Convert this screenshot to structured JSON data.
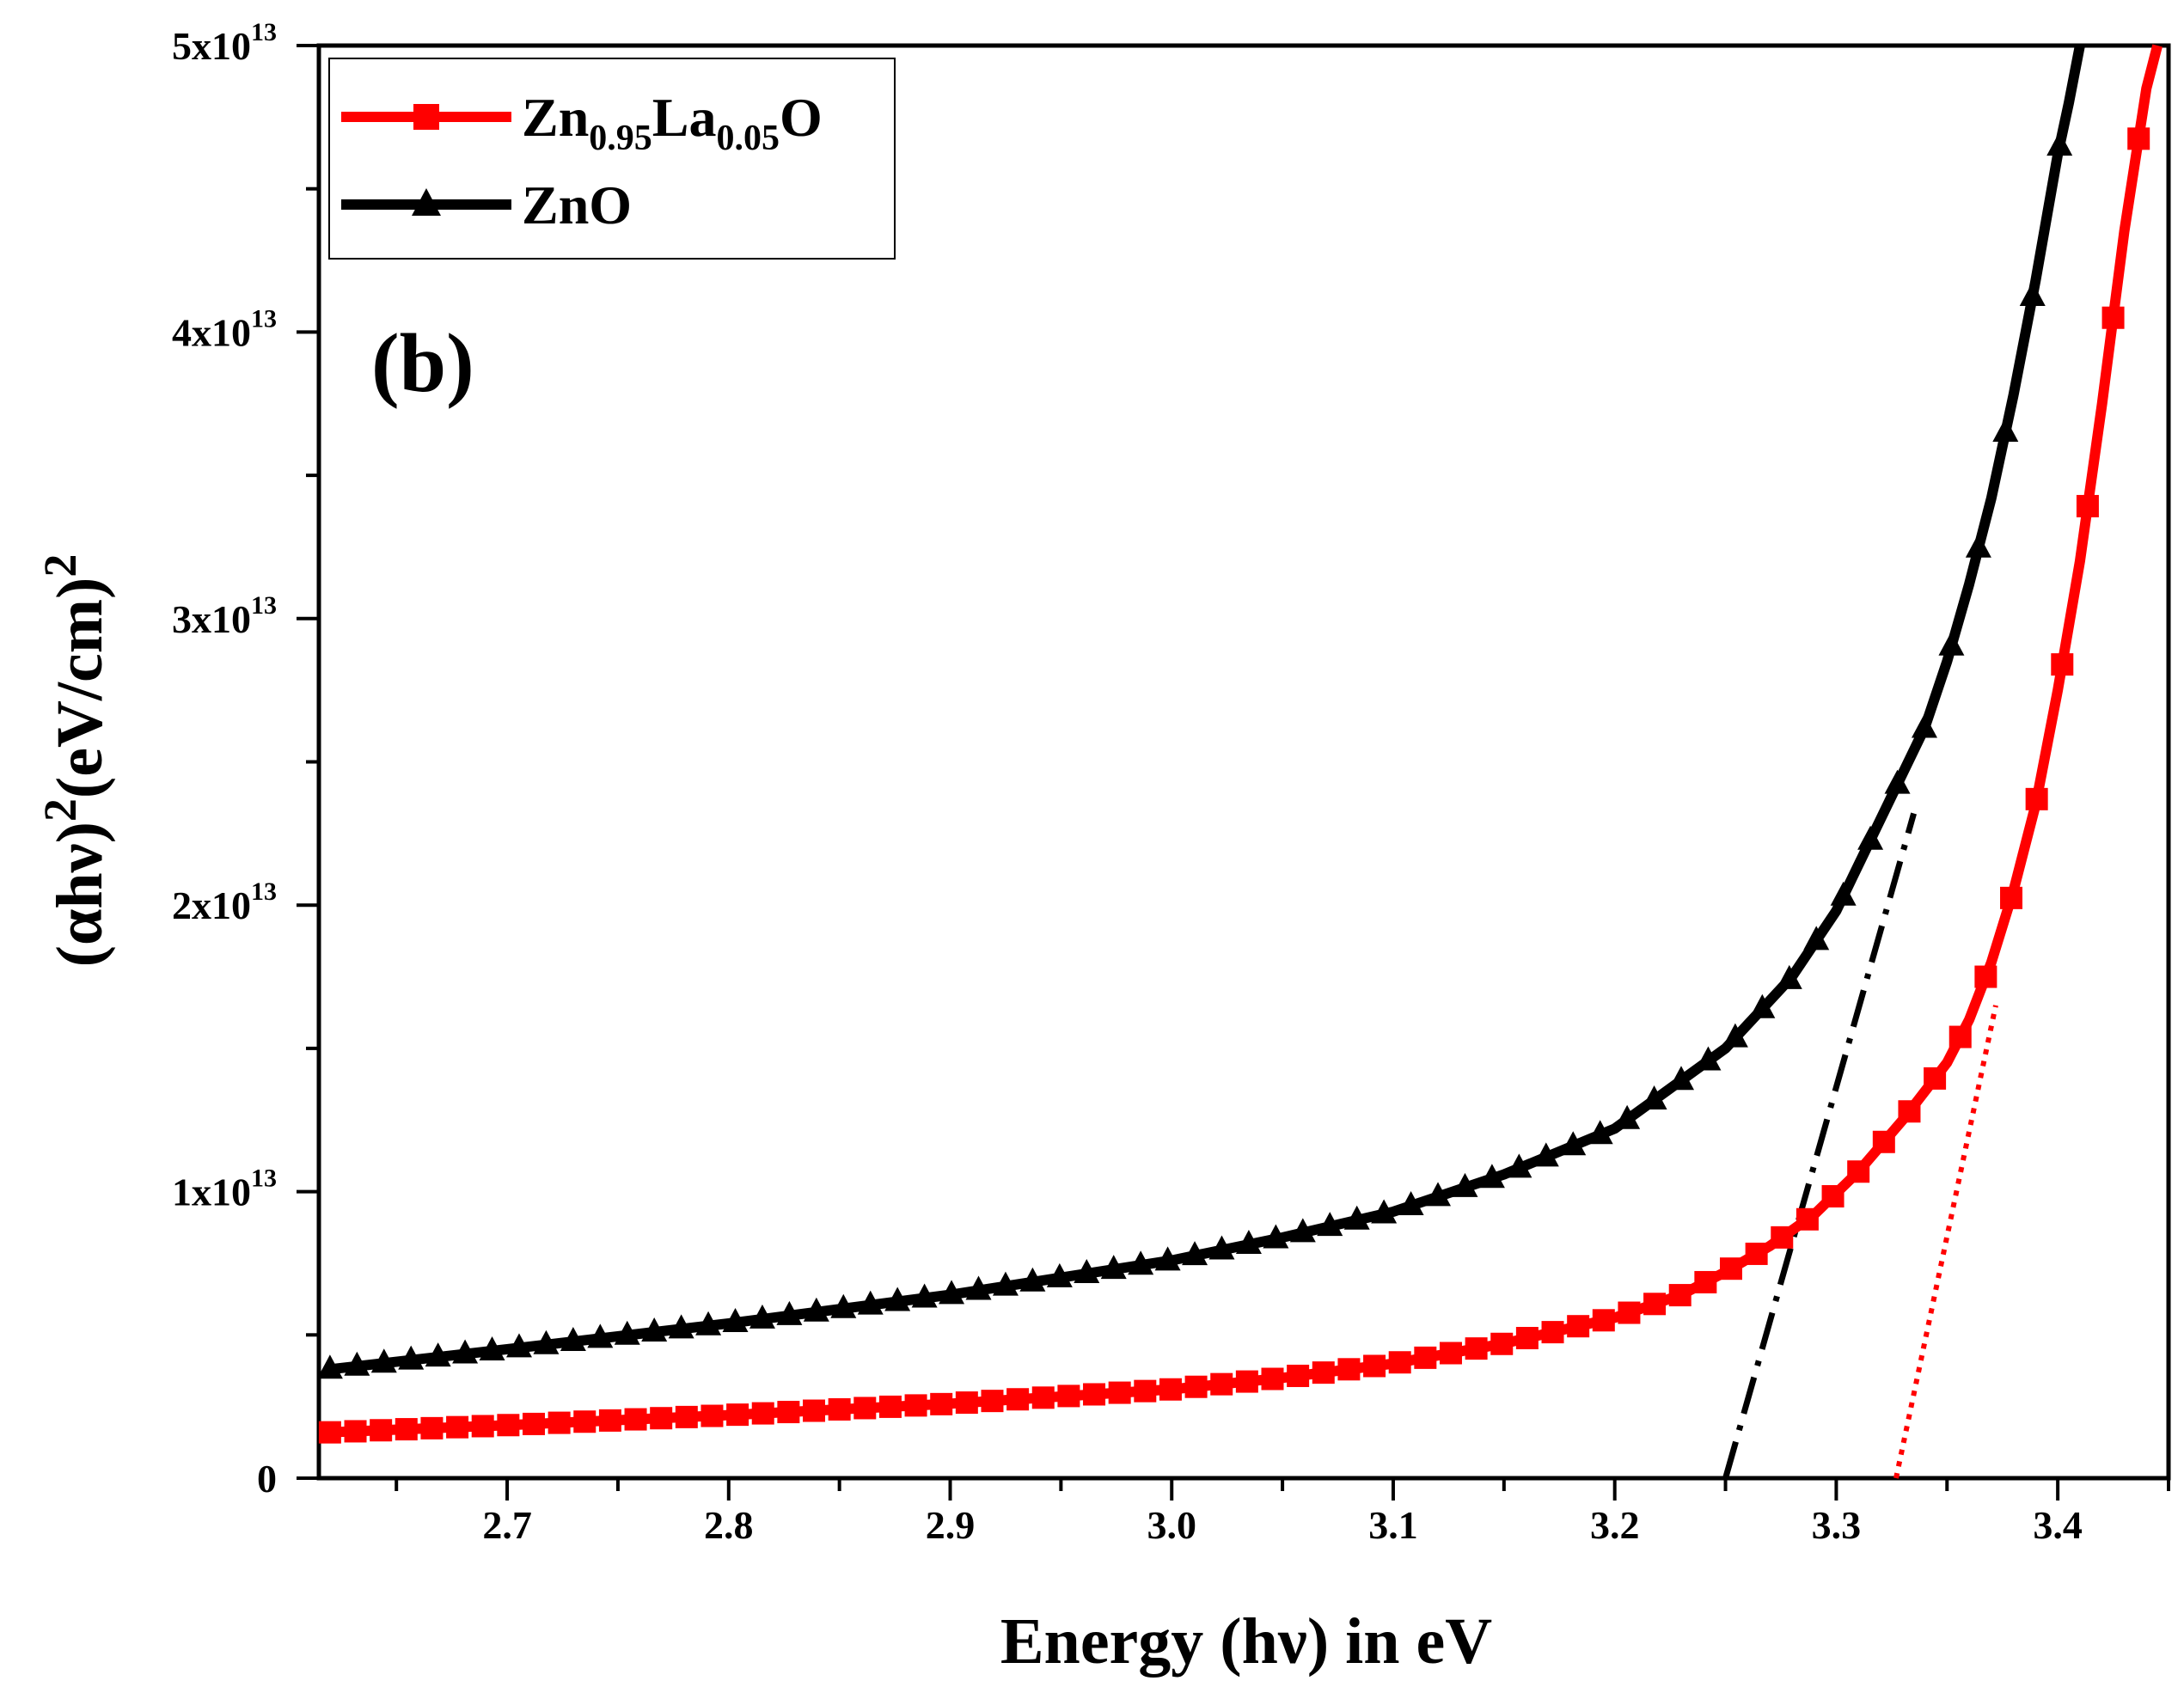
{
  "chart_data": {
    "type": "line",
    "panel_label": "(b)",
    "xlabel": "Energy (hν) in eV",
    "ylabel": {
      "open": "(αhν)",
      "sup1": "2",
      "mid": "(eV/cm)",
      "sup2": "2"
    },
    "xlim": [
      2.615,
      3.45
    ],
    "ylim": [
      0,
      50000000000000.0
    ],
    "x_ticks": [
      {
        "value": 2.7,
        "label": "2.7"
      },
      {
        "value": 2.8,
        "label": "2.8"
      },
      {
        "value": 2.9,
        "label": "2.9"
      },
      {
        "value": 3.0,
        "label": "3.0"
      },
      {
        "value": 3.1,
        "label": "3.1"
      },
      {
        "value": 3.2,
        "label": "3.2"
      },
      {
        "value": 3.3,
        "label": "3.3"
      },
      {
        "value": 3.4,
        "label": "3.4"
      }
    ],
    "y_ticks": [
      {
        "value": 0,
        "label": "0",
        "base": "0",
        "exp": ""
      },
      {
        "value": 10000000000000.0,
        "label": "1x10^13",
        "base": "1x10",
        "exp": "13"
      },
      {
        "value": 20000000000000.0,
        "label": "2x10^13",
        "base": "2x10",
        "exp": "13"
      },
      {
        "value": 30000000000000.0,
        "label": "3x10^13",
        "base": "3x10",
        "exp": "13"
      },
      {
        "value": 40000000000000.0,
        "label": "4x10^13",
        "base": "4x10",
        "exp": "13"
      },
      {
        "value": 50000000000000.0,
        "label": "5x10^13",
        "base": "5x10",
        "exp": "13"
      }
    ],
    "legend": {
      "position": "top-left",
      "entries": [
        {
          "series": "Zn0.95La0.05O",
          "parts": [
            {
              "t": "Zn",
              "sub": false
            },
            {
              "t": "0.95",
              "sub": true
            },
            {
              "t": "La",
              "sub": false
            },
            {
              "t": "0.05",
              "sub": true
            },
            {
              "t": "O",
              "sub": false
            }
          ]
        },
        {
          "series": "ZnO",
          "parts": [
            {
              "t": "ZnO",
              "sub": false
            }
          ]
        }
      ]
    },
    "series": [
      {
        "name": "Zn0.95La0.05O",
        "color": "#ff0000",
        "marker": "square",
        "x": [
          2.62,
          2.7,
          2.8,
          2.9,
          3.0,
          3.05,
          3.1,
          3.15,
          3.2,
          3.23,
          3.25,
          3.27,
          3.29,
          3.31,
          3.33,
          3.35,
          3.36,
          3.37,
          3.38,
          3.39,
          3.4,
          3.41,
          3.42,
          3.43,
          3.44,
          3.445
        ],
        "y": [
          1600000000000.0,
          1850000000000.0,
          2200000000000.0,
          2600000000000.0,
          3100000000000.0,
          3500000000000.0,
          4000000000000.0,
          4700000000000.0,
          5600000000000.0,
          6400000000000.0,
          7200000000000.0,
          8100000000000.0,
          9200000000000.0,
          10700000000000.0,
          12500000000000.0,
          14500000000000.0,
          16000000000000.0,
          18000000000000.0,
          20500000000000.0,
          23500000000000.0,
          27500000000000.0,
          32000000000000.0,
          37500000000000.0,
          43500000000000.0,
          48500000000000.0,
          50000000000000.0
        ]
      },
      {
        "name": "ZnO",
        "color": "#000000",
        "marker": "triangle",
        "x": [
          2.62,
          2.7,
          2.8,
          2.9,
          3.0,
          3.05,
          3.1,
          3.15,
          3.2,
          3.25,
          3.28,
          3.3,
          3.32,
          3.34,
          3.35,
          3.36,
          3.37,
          3.38,
          3.39,
          3.4,
          3.405,
          3.41
        ],
        "y": [
          3800000000000.0,
          4500000000000.0,
          5400000000000.0,
          6400000000000.0,
          7600000000000.0,
          8400000000000.0,
          9300000000000.0,
          10600000000000.0,
          12200000000000.0,
          15000000000000.0,
          17500000000000.0,
          19800000000000.0,
          23000000000000.0,
          26200000000000.0,
          28500000000000.0,
          31200000000000.0,
          34200000000000.0,
          37800000000000.0,
          41800000000000.0,
          46200000000000.0,
          48000000000000.0,
          50000000000000.0
        ]
      }
    ],
    "fit_lines": [
      {
        "name": "ZnO linear extrapolation",
        "style": "dash-dot",
        "color": "#000000",
        "x": [
          3.25,
          3.335
        ],
        "y": [
          0,
          23200000000000.0
        ]
      },
      {
        "name": "Zn0.95La0.05O linear extrapolation",
        "style": "dotted",
        "color": "#ff0000",
        "x": [
          3.327,
          3.372
        ],
        "y": [
          0,
          16500000000000.0
        ]
      }
    ]
  }
}
